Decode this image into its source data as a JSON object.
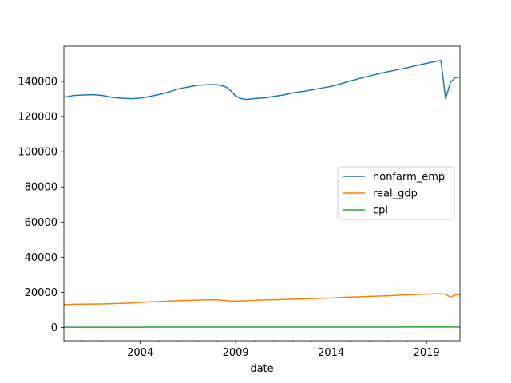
{
  "chart_data": {
    "type": "line",
    "title": "",
    "xlabel": "date",
    "ylabel": "",
    "xlim": [
      2000.0,
      2020.75
    ],
    "ylim": [
      -7500,
      160000
    ],
    "grid": false,
    "legend_position": "center-right",
    "x_ticks": [
      2004,
      2009,
      2014,
      2019
    ],
    "x_tick_labels": [
      "2004",
      "2009",
      "2014",
      "2019"
    ],
    "y_ticks": [
      0,
      20000,
      40000,
      60000,
      80000,
      100000,
      120000,
      140000
    ],
    "y_tick_labels": [
      "0",
      "20000",
      "40000",
      "60000",
      "80000",
      "100000",
      "120000",
      "140000"
    ],
    "x": [
      2000.0,
      2000.5,
      2001.0,
      2001.5,
      2002.0,
      2002.5,
      2003.0,
      2003.5,
      2004.0,
      2004.5,
      2005.0,
      2005.5,
      2006.0,
      2006.5,
      2007.0,
      2007.5,
      2008.0,
      2008.25,
      2008.5,
      2008.75,
      2009.0,
      2009.25,
      2009.5,
      2009.75,
      2010.0,
      2010.5,
      2011.0,
      2011.5,
      2012.0,
      2012.5,
      2013.0,
      2013.5,
      2014.0,
      2014.5,
      2015.0,
      2015.5,
      2016.0,
      2016.5,
      2017.0,
      2017.5,
      2018.0,
      2018.5,
      2019.0,
      2019.5,
      2019.75,
      2020.0,
      2020.25,
      2020.5,
      2020.75
    ],
    "series": [
      {
        "name": "nonfarm_emp",
        "color": "#1f77b4",
        "values": [
          131000,
          132000,
          132300,
          132500,
          132100,
          131000,
          130500,
          130200,
          130500,
          131500,
          132600,
          134000,
          135800,
          136800,
          137800,
          138100,
          138200,
          137700,
          136800,
          134600,
          131700,
          130400,
          129800,
          130000,
          130300,
          130600,
          131500,
          132300,
          133500,
          134300,
          135200,
          136200,
          137200,
          138600,
          140300,
          141700,
          143000,
          144400,
          145600,
          146700,
          147800,
          149100,
          150300,
          151400,
          152000,
          130100,
          139500,
          142100,
          142500
        ]
      },
      {
        "name": "real_gdp",
        "color": "#ff7f0e",
        "values": [
          13000,
          13200,
          13250,
          13300,
          13400,
          13550,
          13700,
          13900,
          14300,
          14550,
          14800,
          15050,
          15300,
          15450,
          15600,
          15750,
          15750,
          15500,
          15300,
          15100,
          15050,
          15100,
          15200,
          15350,
          15500,
          15700,
          15800,
          15950,
          16150,
          16300,
          16450,
          16650,
          16800,
          17100,
          17350,
          17550,
          17700,
          17900,
          18100,
          18350,
          18600,
          18850,
          19000,
          19200,
          19250,
          18900,
          17350,
          18550,
          18800
        ]
      },
      {
        "name": "cpi",
        "color": "#2ca02c",
        "values": [
          170,
          171,
          175,
          177,
          178,
          180,
          183,
          185,
          187,
          190,
          193,
          196,
          200,
          203,
          205,
          207,
          213,
          216,
          218,
          212,
          212,
          213,
          215,
          216,
          217,
          218,
          221,
          225,
          227,
          229,
          231,
          233,
          235,
          237,
          236,
          237,
          238,
          240,
          243,
          245,
          248,
          251,
          253,
          256,
          257,
          258,
          256,
          259,
          261
        ]
      }
    ]
  }
}
